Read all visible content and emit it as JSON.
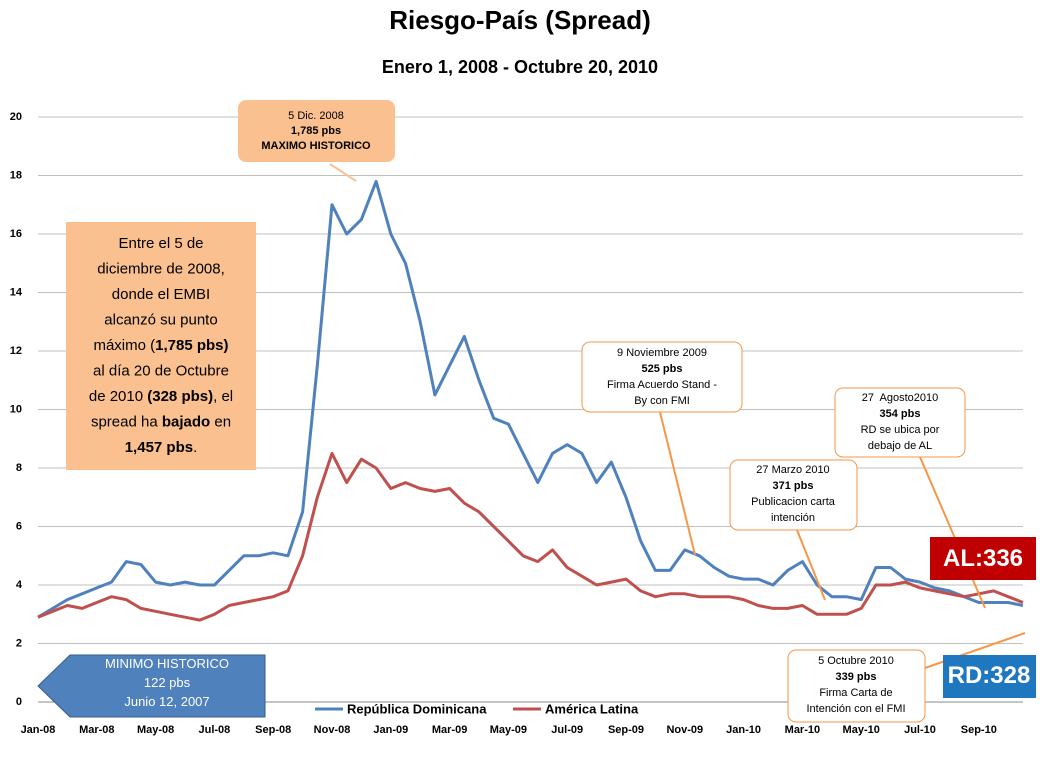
{
  "chart_data": {
    "type": "line",
    "title": "Riesgo-País (Spread)",
    "subtitle": "Enero 1, 2008 - Octubre 20, 2010",
    "categories": [
      "Jan-08",
      null,
      null,
      null,
      "Mar-08",
      null,
      null,
      null,
      "May-08",
      null,
      null,
      null,
      "Jul-08",
      null,
      null,
      null,
      "Sep-08",
      null,
      null,
      null,
      "Nov-08",
      null,
      null,
      null,
      "Jan-09",
      null,
      null,
      null,
      "Mar-09",
      null,
      null,
      null,
      "May-09",
      null,
      null,
      null,
      "Jul-09",
      null,
      null,
      null,
      "Sep-09",
      null,
      null,
      null,
      "Nov-09",
      null,
      null,
      null,
      "Jan-10",
      null,
      null,
      null,
      "Mar-10",
      null,
      null,
      null,
      "May-10",
      null,
      null,
      null,
      "Jul-10",
      null,
      null,
      null,
      "Sep-10",
      null,
      null,
      null
    ],
    "series": [
      {
        "name": "República Dominicana",
        "color": "#4f81bd",
        "values": [
          2.9,
          3.2,
          3.5,
          3.7,
          3.9,
          4.1,
          4.8,
          4.7,
          4.1,
          4.0,
          4.1,
          4.0,
          4.0,
          4.5,
          5.0,
          5.0,
          5.1,
          5.0,
          6.5,
          11.5,
          17.0,
          16.0,
          16.5,
          17.8,
          16.0,
          15.0,
          13.0,
          10.5,
          11.5,
          12.5,
          11.0,
          9.7,
          9.5,
          8.5,
          7.5,
          8.5,
          8.8,
          8.5,
          7.5,
          8.2,
          7.0,
          5.5,
          4.5,
          4.5,
          5.2,
          5.0,
          4.6,
          4.3,
          4.2,
          4.2,
          4.0,
          4.5,
          4.8,
          4.0,
          3.6,
          3.6,
          3.5,
          4.6,
          4.6,
          4.2,
          4.1,
          3.9,
          3.8,
          3.6,
          3.4,
          3.4,
          3.4,
          3.3
        ]
      },
      {
        "name": "América Latina",
        "color": "#c0504d",
        "values": [
          2.9,
          3.1,
          3.3,
          3.2,
          3.4,
          3.6,
          3.5,
          3.2,
          3.1,
          3.0,
          2.9,
          2.8,
          3.0,
          3.3,
          3.4,
          3.5,
          3.6,
          3.8,
          5.0,
          7.0,
          8.5,
          7.5,
          8.3,
          8.0,
          7.3,
          7.5,
          7.3,
          7.2,
          7.3,
          6.8,
          6.5,
          6.0,
          5.5,
          5.0,
          4.8,
          5.2,
          4.6,
          4.3,
          4.0,
          4.1,
          4.2,
          3.8,
          3.6,
          3.7,
          3.7,
          3.6,
          3.6,
          3.6,
          3.5,
          3.3,
          3.2,
          3.2,
          3.3,
          3.0,
          3.0,
          3.0,
          3.2,
          4.0,
          4.0,
          4.1,
          3.9,
          3.8,
          3.7,
          3.6,
          3.7,
          3.8,
          3.6,
          3.4
        ]
      }
    ],
    "ylim": [
      0,
      20
    ],
    "yticks": [
      0,
      2,
      4,
      6,
      8,
      10,
      12,
      14,
      16,
      18,
      20
    ],
    "grid": true,
    "annotations": [
      {
        "lines": [
          [
            {
              "text": "5 Dic. 2008"
            }
          ],
          [
            {
              "text": "1,785 pbs",
              "bold": true
            }
          ],
          [
            {
              "text": "MAXIMO HISTORICO",
              "bold": true
            }
          ]
        ]
      },
      {
        "lines": [
          [
            {
              "text": "Entre el 5 de"
            }
          ],
          [
            {
              "text": "diciembre de 2008,"
            }
          ],
          [
            {
              "text": "donde el EMBI"
            }
          ],
          [
            {
              "text": "alcanzó su punto"
            }
          ],
          [
            {
              "text": "máximo ("
            },
            {
              "text": "1,785 pbs)",
              "bold": true
            }
          ],
          [
            {
              "text": "al día 20 de Octubre"
            }
          ],
          [
            {
              "text": "de 2010 "
            },
            {
              "text": "(328 pbs)",
              "bold": true
            },
            {
              "text": ", el"
            }
          ],
          [
            {
              "text": "spread ha "
            },
            {
              "text": "bajado",
              "bold": true
            },
            {
              "text": " en"
            }
          ],
          [
            {
              "text": "1,457 pbs",
              "bold": true
            },
            {
              "text": "."
            }
          ]
        ]
      },
      {
        "lines": [
          [
            {
              "text": "9 Noviembre 2009"
            }
          ],
          [
            {
              "text": "525 pbs",
              "bold": true
            }
          ],
          [
            {
              "text": "Firma Acuerdo Stand -"
            }
          ],
          [
            {
              "text": "By con FMI"
            }
          ]
        ]
      },
      {
        "lines": [
          [
            {
              "text": "27 Marzo 2010"
            }
          ],
          [
            {
              "text": "371 pbs",
              "bold": true
            }
          ],
          [
            {
              "text": "Publicacion carta"
            }
          ],
          [
            {
              "text": "intención"
            }
          ]
        ]
      },
      {
        "lines": [
          [
            {
              "text": "27  Agosto2010"
            }
          ],
          [
            {
              "text": "354 pbs",
              "bold": true
            }
          ],
          [
            {
              "text": "RD se ubica por"
            }
          ],
          [
            {
              "text": "debajo de AL"
            }
          ]
        ]
      },
      {
        "lines": [
          [
            {
              "text": "5 Octubre 2010"
            }
          ],
          [
            {
              "text": "339 pbs",
              "bold": true
            }
          ],
          [
            {
              "text": "Firma Carta de"
            }
          ],
          [
            {
              "text": "Intención con el FMI"
            }
          ]
        ]
      },
      {
        "lines": [
          [
            {
              "text": "MINIMO HISTORICO"
            }
          ],
          [
            {
              "text": "122 pbs"
            }
          ],
          [
            {
              "text": "Junio 12, 2007"
            }
          ]
        ]
      },
      {
        "lines": [
          [
            {
              "text": "AL:336",
              "bold": true
            }
          ]
        ]
      },
      {
        "lines": [
          [
            {
              "text": "RD:328",
              "bold": true
            }
          ]
        ]
      }
    ]
  }
}
